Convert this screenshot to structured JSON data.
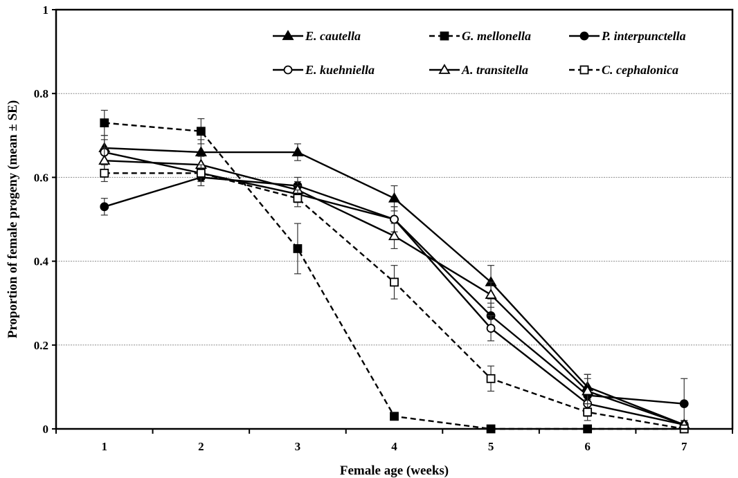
{
  "chart_data": {
    "type": "line",
    "xlabel": "Female age (weeks)",
    "ylabel": "Proportion of female progeny (mean ± SE)",
    "x": [
      1,
      2,
      3,
      4,
      5,
      6,
      7
    ],
    "xlim": [
      0.5,
      7.5
    ],
    "ylim": [
      0,
      1
    ],
    "yticks": [
      0,
      0.2,
      0.4,
      0.6,
      0.8,
      1
    ],
    "grid": "horizontal",
    "legend_position": "top-right",
    "series": [
      {
        "name": "E. cautella",
        "marker": "filled-triangle",
        "line": "solid",
        "values": [
          0.67,
          0.66,
          0.66,
          0.55,
          0.35,
          0.1,
          0.01
        ],
        "se": [
          0.03,
          0.03,
          0.02,
          0.03,
          0.04,
          0.03,
          0.01
        ]
      },
      {
        "name": "G. mellonella",
        "marker": "filled-square",
        "line": "dashed",
        "values": [
          0.73,
          0.71,
          0.43,
          0.03,
          0.0,
          0.0,
          0.0
        ],
        "se": [
          0.03,
          0.03,
          0.06,
          0.005,
          0.0,
          0.0,
          0.0
        ]
      },
      {
        "name": "P. interpunctella",
        "marker": "filled-circle",
        "line": "solid",
        "values": [
          0.53,
          0.6,
          0.58,
          0.5,
          0.27,
          0.08,
          0.06
        ],
        "se": [
          0.02,
          0.02,
          0.02,
          0.03,
          0.03,
          0.05,
          0.06
        ]
      },
      {
        "name": "E. kuehniella",
        "marker": "open-circle",
        "line": "solid",
        "values": [
          0.66,
          0.61,
          0.56,
          0.5,
          0.24,
          0.06,
          0.01
        ],
        "se": [
          0.03,
          0.02,
          0.02,
          0.03,
          0.03,
          0.03,
          0.01
        ]
      },
      {
        "name": "A. transitella",
        "marker": "open-triangle",
        "line": "solid",
        "values": [
          0.64,
          0.63,
          0.57,
          0.46,
          0.32,
          0.09,
          0.01
        ],
        "se": [
          0.03,
          0.02,
          0.02,
          0.03,
          0.03,
          0.03,
          0.01
        ]
      },
      {
        "name": "C. cephalonica",
        "marker": "open-square",
        "line": "dashed",
        "values": [
          0.61,
          0.61,
          0.55,
          0.35,
          0.12,
          0.04,
          0.0
        ],
        "se": [
          0.02,
          0.02,
          0.02,
          0.04,
          0.03,
          0.02,
          0.005
        ]
      }
    ]
  }
}
